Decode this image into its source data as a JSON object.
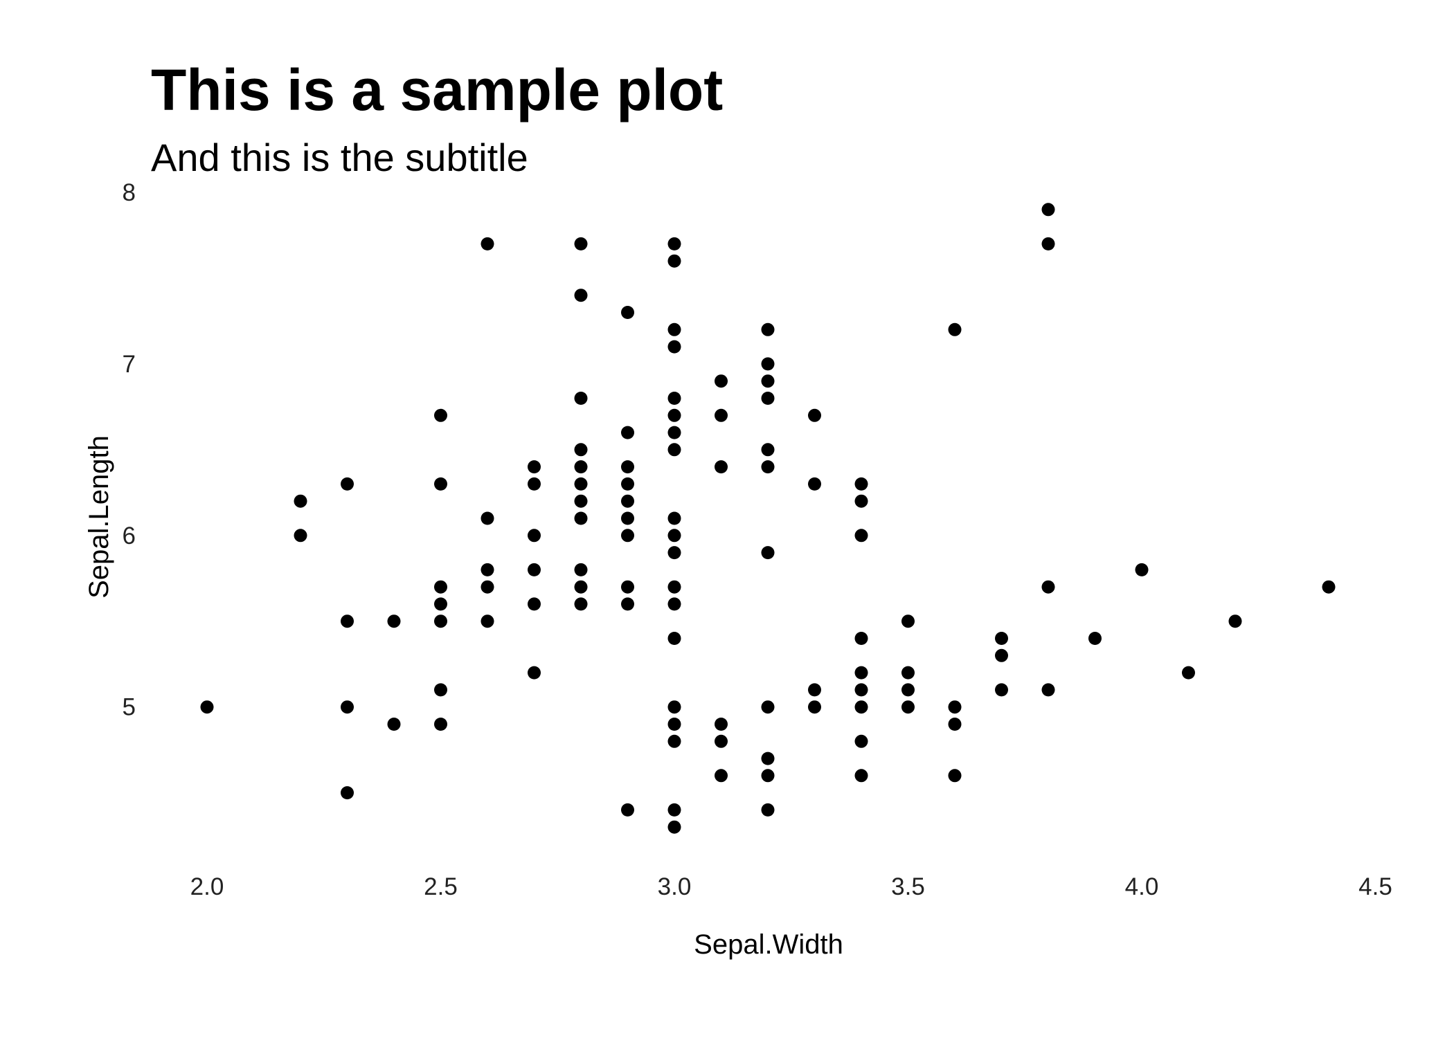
{
  "chart_data": {
    "type": "scatter",
    "title": "This is a sample plot",
    "subtitle": "And this is the subtitle",
    "xlabel": "Sepal.Width",
    "ylabel": "Sepal.Length",
    "xlim": [
      1.88,
      4.52
    ],
    "ylim": [
      4.2,
      8.0
    ],
    "x_ticks": [
      2.0,
      2.5,
      3.0,
      3.5,
      4.0,
      4.5
    ],
    "x_tick_labels": [
      "2.0",
      "2.5",
      "3.0",
      "3.5",
      "4.0",
      "4.5"
    ],
    "y_ticks": [
      5,
      6,
      7,
      8
    ],
    "y_tick_labels": [
      "5",
      "6",
      "7",
      "8"
    ],
    "grid": false,
    "point_color": "#000000",
    "points": [
      [
        2.0,
        5.0
      ],
      [
        2.2,
        6.2
      ],
      [
        2.2,
        6.0
      ],
      [
        2.3,
        6.3
      ],
      [
        2.3,
        5.5
      ],
      [
        2.3,
        5.0
      ],
      [
        2.3,
        4.5
      ],
      [
        2.4,
        5.5
      ],
      [
        2.4,
        4.9
      ],
      [
        2.5,
        6.7
      ],
      [
        2.5,
        6.3
      ],
      [
        2.5,
        5.7
      ],
      [
        2.5,
        5.6
      ],
      [
        2.5,
        5.5
      ],
      [
        2.5,
        5.1
      ],
      [
        2.5,
        4.9
      ],
      [
        2.6,
        7.7
      ],
      [
        2.6,
        6.1
      ],
      [
        2.6,
        5.8
      ],
      [
        2.6,
        5.7
      ],
      [
        2.6,
        5.5
      ],
      [
        2.7,
        6.4
      ],
      [
        2.7,
        6.3
      ],
      [
        2.7,
        6.0
      ],
      [
        2.7,
        5.8
      ],
      [
        2.7,
        5.6
      ],
      [
        2.7,
        5.2
      ],
      [
        2.8,
        7.7
      ],
      [
        2.8,
        7.4
      ],
      [
        2.8,
        6.8
      ],
      [
        2.8,
        6.5
      ],
      [
        2.8,
        6.4
      ],
      [
        2.8,
        6.3
      ],
      [
        2.8,
        6.2
      ],
      [
        2.8,
        6.1
      ],
      [
        2.8,
        5.8
      ],
      [
        2.8,
        5.7
      ],
      [
        2.8,
        5.6
      ],
      [
        2.9,
        7.3
      ],
      [
        2.9,
        6.6
      ],
      [
        2.9,
        6.4
      ],
      [
        2.9,
        6.3
      ],
      [
        2.9,
        6.2
      ],
      [
        2.9,
        6.1
      ],
      [
        2.9,
        6.0
      ],
      [
        2.9,
        5.7
      ],
      [
        2.9,
        5.6
      ],
      [
        2.9,
        4.4
      ],
      [
        3.0,
        7.7
      ],
      [
        3.0,
        7.6
      ],
      [
        3.0,
        7.2
      ],
      [
        3.0,
        7.1
      ],
      [
        3.0,
        6.8
      ],
      [
        3.0,
        6.7
      ],
      [
        3.0,
        6.6
      ],
      [
        3.0,
        6.5
      ],
      [
        3.0,
        6.1
      ],
      [
        3.0,
        6.0
      ],
      [
        3.0,
        5.9
      ],
      [
        3.0,
        5.7
      ],
      [
        3.0,
        5.6
      ],
      [
        3.0,
        5.4
      ],
      [
        3.0,
        5.0
      ],
      [
        3.0,
        4.9
      ],
      [
        3.0,
        4.8
      ],
      [
        3.0,
        4.4
      ],
      [
        3.0,
        4.3
      ],
      [
        3.1,
        6.9
      ],
      [
        3.1,
        6.7
      ],
      [
        3.1,
        6.4
      ],
      [
        3.1,
        4.9
      ],
      [
        3.1,
        4.8
      ],
      [
        3.1,
        4.6
      ],
      [
        3.2,
        7.2
      ],
      [
        3.2,
        7.0
      ],
      [
        3.2,
        6.9
      ],
      [
        3.2,
        6.8
      ],
      [
        3.2,
        6.5
      ],
      [
        3.2,
        6.4
      ],
      [
        3.2,
        5.9
      ],
      [
        3.2,
        5.0
      ],
      [
        3.2,
        4.7
      ],
      [
        3.2,
        4.6
      ],
      [
        3.2,
        4.4
      ],
      [
        3.3,
        6.7
      ],
      [
        3.3,
        6.3
      ],
      [
        3.3,
        5.1
      ],
      [
        3.3,
        5.0
      ],
      [
        3.4,
        6.3
      ],
      [
        3.4,
        6.2
      ],
      [
        3.4,
        6.0
      ],
      [
        3.4,
        5.4
      ],
      [
        3.4,
        5.2
      ],
      [
        3.4,
        5.1
      ],
      [
        3.4,
        5.0
      ],
      [
        3.4,
        4.8
      ],
      [
        3.4,
        4.6
      ],
      [
        3.5,
        5.5
      ],
      [
        3.5,
        5.2
      ],
      [
        3.5,
        5.1
      ],
      [
        3.5,
        5.0
      ],
      [
        3.6,
        7.2
      ],
      [
        3.6,
        5.0
      ],
      [
        3.6,
        4.9
      ],
      [
        3.6,
        4.6
      ],
      [
        3.7,
        5.4
      ],
      [
        3.7,
        5.3
      ],
      [
        3.7,
        5.1
      ],
      [
        3.8,
        7.9
      ],
      [
        3.8,
        7.7
      ],
      [
        3.8,
        5.7
      ],
      [
        3.8,
        5.1
      ],
      [
        3.9,
        5.4
      ],
      [
        4.0,
        5.8
      ],
      [
        4.1,
        5.2
      ],
      [
        4.2,
        5.5
      ],
      [
        4.4,
        5.7
      ]
    ]
  }
}
